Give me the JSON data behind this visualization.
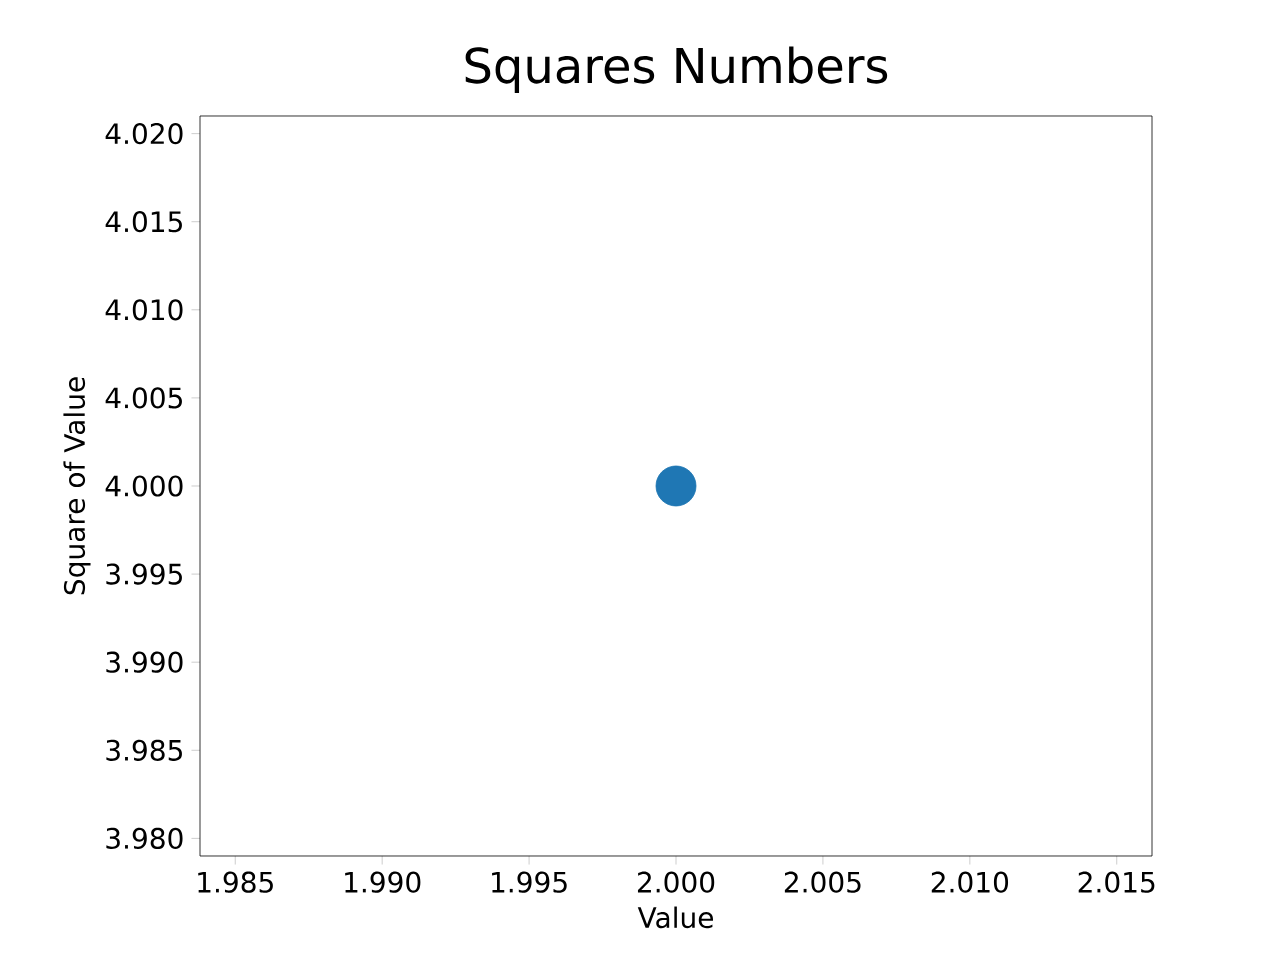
{
  "chart_data": {
    "type": "scatter",
    "title": "Squares Numbers",
    "xlabel": "Value",
    "ylabel": "Square of Value",
    "x": [
      2
    ],
    "values": [
      4
    ],
    "color": "#1f77b4",
    "marker": "circle",
    "xlim": [
      1.9838,
      2.0162
    ],
    "ylim": [
      3.979,
      4.021
    ],
    "xticks": [
      {
        "value": 1.985,
        "label": "1.985"
      },
      {
        "value": 1.99,
        "label": "1.990"
      },
      {
        "value": 1.995,
        "label": "1.995"
      },
      {
        "value": 2.0,
        "label": "2.000"
      },
      {
        "value": 2.005,
        "label": "2.005"
      },
      {
        "value": 2.01,
        "label": "2.010"
      },
      {
        "value": 2.015,
        "label": "2.015"
      }
    ],
    "yticks": [
      {
        "value": 3.98,
        "label": "3.980"
      },
      {
        "value": 3.985,
        "label": "3.985"
      },
      {
        "value": 3.99,
        "label": "3.990"
      },
      {
        "value": 3.995,
        "label": "3.995"
      },
      {
        "value": 4.0,
        "label": "4.000"
      },
      {
        "value": 4.005,
        "label": "4.005"
      },
      {
        "value": 4.01,
        "label": "4.010"
      },
      {
        "value": 4.015,
        "label": "4.015"
      },
      {
        "value": 4.02,
        "label": "4.020"
      }
    ]
  }
}
